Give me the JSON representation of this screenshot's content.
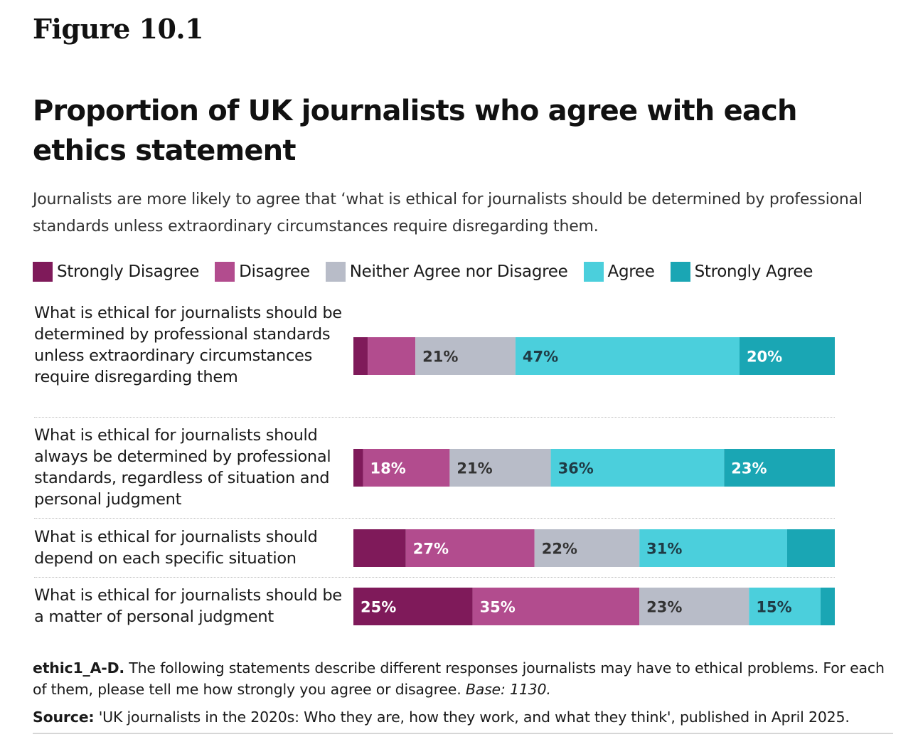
{
  "figure_label": "Figure 10.1",
  "title": "Proportion of UK journalists who agree with each ethics statement",
  "subtitle": "Journalists are more likely to agree that ‘what is ethical for journalists should be determined by professional standards unless extraordinary circumstances require disregarding them.",
  "note": {
    "code": "ethic1_A-D.",
    "text": " The following statements describe different responses journalists may have to ethical problems. For each of them, please tell me how strongly you agree or disagree. ",
    "base": "Base: 1130."
  },
  "source": {
    "label": "Source:",
    "text": " 'UK journalists in the 2020s: Who they are, how they work, and what they think', published in April 2025."
  },
  "colors": {
    "strongly_disagree": "#7f1a5a",
    "disagree": "#b24c8e",
    "neither": "#b8bcc8",
    "agree": "#4bcfdc",
    "strongly_agree": "#1aa6b4"
  },
  "chart_data": {
    "type": "bar",
    "orientation": "horizontal",
    "stacked": true,
    "legend_position": "top",
    "xlim": [
      0,
      100
    ],
    "categories": [
      "What is ethical for journalists should be determined by professional standards unless extraordinary circumstances require disregarding them",
      "What is ethical for journalists should always be determined by professional standards, regardless of situation and personal judgment",
      "What is ethical for journalists should depend on each specific situation",
      "What is ethical for journalists should be a matter of personal judgment"
    ],
    "series": [
      {
        "name": "Strongly Disagree",
        "values": [
          3,
          2,
          11,
          25
        ],
        "labels": [
          "",
          "",
          "",
          "25%"
        ]
      },
      {
        "name": "Disagree",
        "values": [
          10,
          18,
          27,
          35
        ],
        "labels": [
          "",
          "18%",
          "27%",
          "35%"
        ]
      },
      {
        "name": "Neither Agree nor Disagree",
        "values": [
          21,
          21,
          22,
          23
        ],
        "labels": [
          "21%",
          "21%",
          "22%",
          "23%"
        ]
      },
      {
        "name": "Agree",
        "values": [
          47,
          36,
          31,
          15
        ],
        "labels": [
          "47%",
          "36%",
          "31%",
          "15%"
        ]
      },
      {
        "name": "Strongly Agree",
        "values": [
          20,
          23,
          10,
          3
        ],
        "labels": [
          "20%",
          "23%",
          "",
          ""
        ]
      }
    ]
  }
}
